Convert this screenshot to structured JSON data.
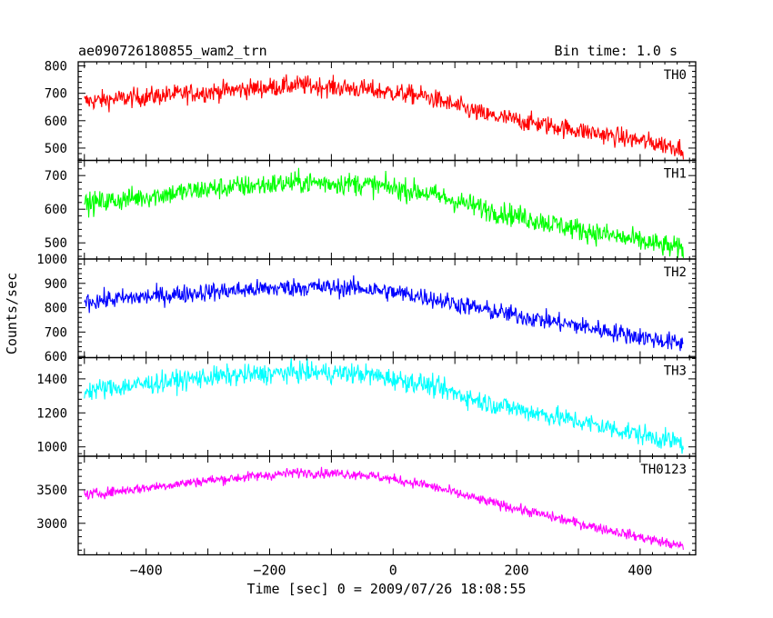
{
  "header": {
    "title": "ae090726180855_wam2_trn",
    "bin_time": "Bin time: 1.0 s"
  },
  "axes": {
    "xlabel": "Time [sec] 0 = 2009/07/26 18:08:55",
    "ylabel": "Counts/sec"
  },
  "chart_data": {
    "type": "line",
    "x_range": [
      -510,
      490
    ],
    "x_ticks": [
      -400,
      -200,
      0,
      200,
      400
    ],
    "x_tick_labels": [
      "−400",
      "−200",
      "0",
      "200",
      "400"
    ],
    "bin_seconds": 1.0,
    "data_x_start": -500,
    "data_x_end": 470,
    "panels": [
      {
        "name": "TH0",
        "color": "#ff0000",
        "ylim": [
          455,
          815
        ],
        "y_ticks": [
          500,
          600,
          700,
          800
        ],
        "trend": [
          [
            -500,
            670
          ],
          [
            -300,
            705
          ],
          [
            -150,
            730
          ],
          [
            -50,
            715
          ],
          [
            50,
            690
          ],
          [
            150,
            620
          ],
          [
            300,
            565
          ],
          [
            470,
            500
          ]
        ],
        "noise": 35
      },
      {
        "name": "TH1",
        "color": "#00ff00",
        "ylim": [
          452,
          745
        ],
        "y_ticks": [
          500,
          600,
          700
        ],
        "trend": [
          [
            -500,
            615
          ],
          [
            -300,
            660
          ],
          [
            -150,
            680
          ],
          [
            -50,
            675
          ],
          [
            50,
            650
          ],
          [
            150,
            600
          ],
          [
            300,
            540
          ],
          [
            470,
            480
          ]
        ],
        "noise": 33
      },
      {
        "name": "TH2",
        "color": "#0000ff",
        "ylim": [
          595,
          1000
        ],
        "y_ticks": [
          600,
          700,
          800,
          900,
          1000
        ],
        "trend": [
          [
            -500,
            825
          ],
          [
            -300,
            865
          ],
          [
            -150,
            885
          ],
          [
            -50,
            880
          ],
          [
            50,
            845
          ],
          [
            150,
            790
          ],
          [
            300,
            725
          ],
          [
            470,
            650
          ]
        ],
        "noise": 38
      },
      {
        "name": "TH3",
        "color": "#00ffff",
        "ylim": [
          945,
          1525
        ],
        "y_ticks": [
          1000,
          1200,
          1400
        ],
        "trend": [
          [
            -500,
            1330
          ],
          [
            -300,
            1410
          ],
          [
            -150,
            1440
          ],
          [
            -50,
            1430
          ],
          [
            50,
            1370
          ],
          [
            150,
            1260
          ],
          [
            300,
            1150
          ],
          [
            470,
            1020
          ]
        ],
        "noise": 60
      },
      {
        "name": "TH0123",
        "color": "#ff00ff",
        "ylim": [
          2530,
          4000
        ],
        "y_ticks": [
          3000,
          3500
        ],
        "trend": [
          [
            -500,
            3420
          ],
          [
            -300,
            3640
          ],
          [
            -150,
            3760
          ],
          [
            -50,
            3730
          ],
          [
            50,
            3580
          ],
          [
            150,
            3330
          ],
          [
            300,
            3000
          ],
          [
            470,
            2650
          ]
        ],
        "noise": 75
      }
    ]
  }
}
